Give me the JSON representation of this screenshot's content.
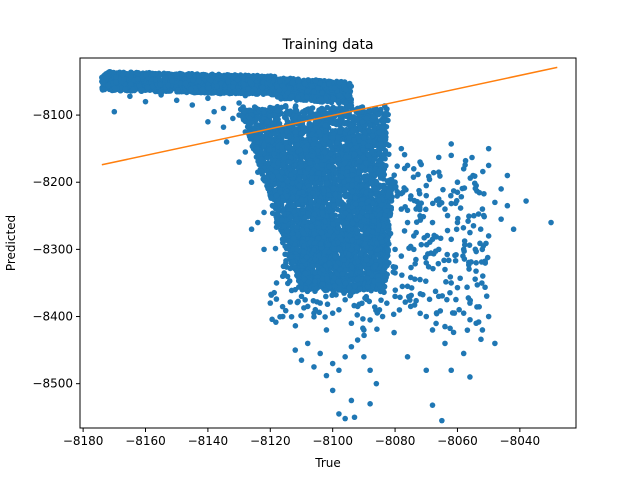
{
  "chart_data": {
    "type": "scatter",
    "title": "Training data",
    "xlabel": "True",
    "ylabel": "Predicted",
    "xlim": [
      -8181,
      -8022
    ],
    "ylim": [
      -8566,
      -8015
    ],
    "xticks": [
      -8180,
      -8160,
      -8140,
      -8120,
      -8100,
      -8080,
      -8060,
      -8040
    ],
    "yticks": [
      -8100,
      -8200,
      -8300,
      -8400,
      -8500
    ],
    "grid": false,
    "legend": "none",
    "colors": {
      "scatter": "#1f77b4",
      "fit_line": "#ff7f0e"
    },
    "series": [
      {
        "kind": "scatter",
        "points": [
          [
            -8174,
            -8044
          ],
          [
            -8172,
            -8052
          ],
          [
            -8170,
            -8060
          ],
          [
            -8168,
            -8047
          ],
          [
            -8166,
            -8056
          ],
          [
            -8164,
            -8051
          ],
          [
            -8162,
            -8058
          ],
          [
            -8160,
            -8053
          ],
          [
            -8158,
            -8062
          ],
          [
            -8156,
            -8049
          ],
          [
            -8154,
            -8057
          ],
          [
            -8152,
            -8064
          ],
          [
            -8150,
            -8055
          ],
          [
            -8148,
            -8060
          ],
          [
            -8146,
            -8050
          ],
          [
            -8144,
            -8066
          ],
          [
            -8142,
            -8058
          ],
          [
            -8140,
            -8061
          ],
          [
            -8138,
            -8054
          ],
          [
            -8136,
            -8068
          ],
          [
            -8134,
            -8057
          ],
          [
            -8132,
            -8063
          ],
          [
            -8130,
            -8052
          ],
          [
            -8128,
            -8071
          ],
          [
            -8126,
            -8060
          ],
          [
            -8124,
            -8066
          ],
          [
            -8122,
            -8049
          ],
          [
            -8120,
            -8062
          ],
          [
            -8118,
            -8070
          ],
          [
            -8116,
            -8058
          ],
          [
            -8114,
            -8066
          ],
          [
            -8112,
            -8061
          ],
          [
            -8110,
            -8073
          ],
          [
            -8108,
            -8068
          ],
          [
            -8106,
            -8075
          ],
          [
            -8104,
            -8072
          ],
          [
            -8102,
            -8078
          ],
          [
            -8100,
            -8076
          ],
          [
            -8098,
            -8082
          ],
          [
            -8096,
            -8080
          ],
          [
            -8094,
            -8086
          ],
          [
            -8092,
            -8090
          ],
          [
            -8170,
            -8095
          ],
          [
            -8165,
            -8072
          ],
          [
            -8160,
            -8080
          ],
          [
            -8155,
            -8070
          ],
          [
            -8150,
            -8078
          ],
          [
            -8145,
            -8085
          ],
          [
            -8140,
            -8075
          ],
          [
            -8135,
            -8090
          ],
          [
            -8130,
            -8082
          ],
          [
            -8125,
            -8088
          ],
          [
            -8140,
            -8110
          ],
          [
            -8135,
            -8118
          ],
          [
            -8130,
            -8100
          ],
          [
            -8128,
            -8125
          ],
          [
            -8132,
            -8105
          ],
          [
            -8138,
            -8095
          ],
          [
            -8126,
            -8130
          ],
          [
            -8124,
            -8115
          ],
          [
            -8122,
            -8140
          ],
          [
            -8120,
            -8150
          ],
          [
            -8118,
            -8160
          ],
          [
            -8119,
            -8180
          ],
          [
            -8117,
            -8195
          ],
          [
            -8116,
            -8210
          ],
          [
            -8118,
            -8230
          ],
          [
            -8114,
            -8240
          ],
          [
            -8113,
            -8260
          ],
          [
            -8112,
            -8275
          ],
          [
            -8115,
            -8205
          ],
          [
            -8112,
            -8150
          ],
          [
            -8110,
            -8170
          ],
          [
            -8108,
            -8190
          ],
          [
            -8106,
            -8210
          ],
          [
            -8104,
            -8230
          ],
          [
            -8102,
            -8250
          ],
          [
            -8100,
            -8270
          ],
          [
            -8098,
            -8290
          ],
          [
            -8096,
            -8310
          ],
          [
            -8094,
            -8330
          ],
          [
            -8092,
            -8345
          ],
          [
            -8110,
            -8120
          ],
          [
            -8106,
            -8140
          ],
          [
            -8102,
            -8160
          ],
          [
            -8098,
            -8180
          ],
          [
            -8094,
            -8200
          ],
          [
            -8090,
            -8220
          ],
          [
            -8086,
            -8240
          ],
          [
            -8088,
            -8260
          ],
          [
            -8092,
            -8280
          ],
          [
            -8096,
            -8300
          ],
          [
            -8100,
            -8320
          ],
          [
            -8104,
            -8300
          ],
          [
            -8108,
            -8280
          ],
          [
            -8106,
            -8260
          ],
          [
            -8100,
            -8240
          ],
          [
            -8096,
            -8220
          ],
          [
            -8092,
            -8240
          ],
          [
            -8090,
            -8300
          ],
          [
            -8088,
            -8320
          ],
          [
            -8100,
            -8345
          ],
          [
            -8104,
            -8335
          ],
          [
            -8098,
            -8355
          ],
          [
            -8094,
            -8365
          ],
          [
            -8090,
            -8360
          ],
          [
            -8086,
            -8345
          ],
          [
            -8082,
            -8320
          ],
          [
            -8080,
            -8300
          ],
          [
            -8082,
            -8270
          ],
          [
            -8084,
            -8230
          ],
          [
            -8086,
            -8200
          ],
          [
            -8088,
            -8180
          ],
          [
            -8090,
            -8150
          ],
          [
            -8092,
            -8130
          ],
          [
            -8088,
            -8110
          ],
          [
            -8086,
            -8125
          ],
          [
            -8084,
            -8160
          ],
          [
            -8080,
            -8200
          ],
          [
            -8078,
            -8240
          ],
          [
            -8076,
            -8260
          ],
          [
            -8074,
            -8280
          ],
          [
            -8072,
            -8250
          ],
          [
            -8070,
            -8220
          ],
          [
            -8068,
            -8260
          ],
          [
            -8066,
            -8300
          ],
          [
            -8064,
            -8330
          ],
          [
            -8062,
            -8285
          ],
          [
            -8060,
            -8260
          ],
          [
            -8058,
            -8300
          ],
          [
            -8056,
            -8275
          ],
          [
            -8054,
            -8320
          ],
          [
            -8052,
            -8240
          ],
          [
            -8050,
            -8280
          ],
          [
            -8048,
            -8230
          ],
          [
            -8046,
            -8255
          ],
          [
            -8044,
            -8235
          ],
          [
            -8042,
            -8270
          ],
          [
            -8038,
            -8228
          ],
          [
            -8030,
            -8260
          ],
          [
            -8050,
            -8175
          ],
          [
            -8055,
            -8190
          ],
          [
            -8060,
            -8215
          ],
          [
            -8062,
            -8160
          ],
          [
            -8066,
            -8185
          ],
          [
            -8070,
            -8205
          ],
          [
            -8074,
            -8180
          ],
          [
            -8078,
            -8150
          ],
          [
            -8060,
            -8357
          ],
          [
            -8056,
            -8380
          ],
          [
            -8052,
            -8420
          ],
          [
            -8050,
            -8400
          ],
          [
            -8048,
            -8440
          ],
          [
            -8054,
            -8410
          ],
          [
            -8058,
            -8395
          ],
          [
            -8064,
            -8415
          ],
          [
            -8068,
            -8420
          ],
          [
            -8070,
            -8400
          ],
          [
            -8075,
            -8385
          ],
          [
            -8080,
            -8370
          ],
          [
            -8085,
            -8390
          ],
          [
            -8088,
            -8405
          ],
          [
            -8090,
            -8420
          ],
          [
            -8092,
            -8435
          ],
          [
            -8094,
            -8445
          ],
          [
            -8096,
            -8460
          ],
          [
            -8098,
            -8480
          ],
          [
            -8100,
            -8470
          ],
          [
            -8104,
            -8455
          ],
          [
            -8108,
            -8440
          ],
          [
            -8112,
            -8450
          ],
          [
            -8116,
            -8400
          ],
          [
            -8120,
            -8380
          ],
          [
            -8118,
            -8350
          ],
          [
            -8115,
            -8320
          ],
          [
            -8110,
            -8370
          ],
          [
            -8106,
            -8395
          ],
          [
            -8102,
            -8420
          ],
          [
            -8098,
            -8390
          ],
          [
            -8094,
            -8410
          ],
          [
            -8090,
            -8460
          ],
          [
            -8088,
            -8480
          ],
          [
            -8086,
            -8500
          ],
          [
            -8094,
            -8525
          ],
          [
            -8098,
            -8545
          ],
          [
            -8096,
            -8552
          ],
          [
            -8093,
            -8550
          ],
          [
            -8088,
            -8530
          ],
          [
            -8100,
            -8510
          ],
          [
            -8102,
            -8488
          ],
          [
            -8106,
            -8475
          ],
          [
            -8110,
            -8465
          ],
          [
            -8068,
            -8532
          ],
          [
            -8065,
            -8555
          ],
          [
            -8070,
            -8480
          ],
          [
            -8076,
            -8460
          ],
          [
            -8062,
            -8480
          ],
          [
            -8056,
            -8490
          ],
          [
            -8058,
            -8455
          ],
          [
            -8064,
            -8440
          ],
          [
            -8120,
            -8220
          ],
          [
            -8122,
            -8245
          ],
          [
            -8124,
            -8260
          ],
          [
            -8126,
            -8270
          ],
          [
            -8116,
            -8290
          ],
          [
            -8114,
            -8310
          ],
          [
            -8108,
            -8330
          ],
          [
            -8104,
            -8350
          ],
          [
            -8126,
            -8200
          ],
          [
            -8130,
            -8170
          ],
          [
            -8134,
            -8140
          ],
          [
            -8128,
            -8155
          ],
          [
            -8124,
            -8185
          ],
          [
            -8120,
            -8200
          ],
          [
            -8118,
            -8260
          ],
          [
            -8122,
            -8300
          ],
          [
            -8116,
            -8340
          ],
          [
            -8112,
            -8360
          ],
          [
            -8108,
            -8385
          ],
          [
            -8104,
            -8380
          ],
          [
            -8100,
            -8395
          ],
          [
            -8096,
            -8375
          ],
          [
            -8092,
            -8385
          ],
          [
            -8084,
            -8400
          ],
          [
            -8076,
            -8355
          ],
          [
            -8072,
            -8345
          ],
          [
            -8066,
            -8370
          ],
          [
            -8062,
            -8350
          ],
          [
            -8080,
            -8335
          ],
          [
            -8078,
            -8310
          ],
          [
            -8074,
            -8300
          ],
          [
            -8070,
            -8320
          ],
          [
            -8068,
            -8285
          ],
          [
            -8064,
            -8240
          ],
          [
            -8066,
            -8225
          ],
          [
            -8060,
            -8200
          ],
          [
            -8058,
            -8180
          ],
          [
            -8054,
            -8205
          ],
          [
            -8046,
            -8210
          ],
          [
            -8044,
            -8190
          ],
          [
            -8050,
            -8150
          ],
          [
            -8062,
            -8143
          ],
          [
            -8066,
            -8163
          ],
          [
            -8072,
            -8170
          ],
          [
            -8076,
            -8175
          ],
          [
            -8082,
            -8145
          ],
          [
            -8084,
            -8135
          ],
          [
            -8086,
            -8160
          ]
        ]
      },
      {
        "kind": "line",
        "points": [
          [
            -8174,
            -8174
          ],
          [
            -8028,
            -8029
          ]
        ]
      }
    ]
  }
}
